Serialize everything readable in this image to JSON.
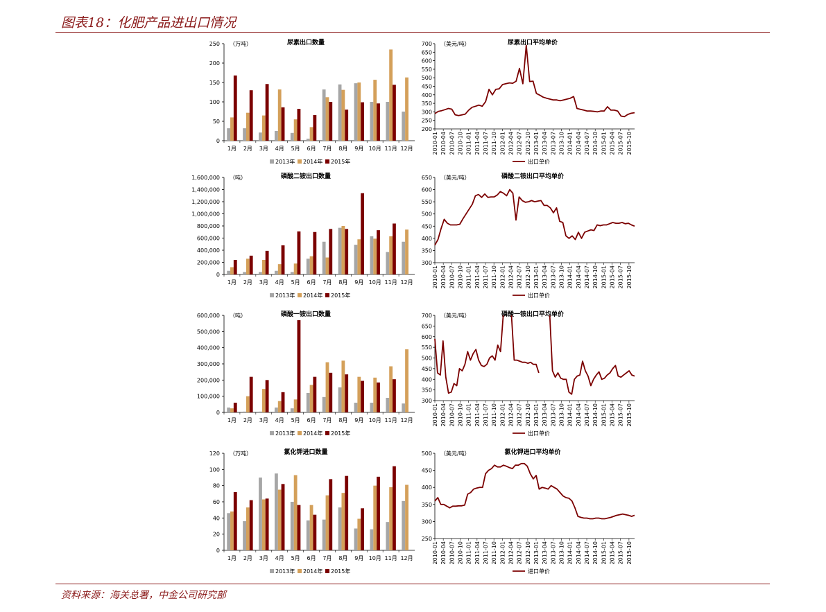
{
  "page": {
    "title": "图表18：化肥产品进出口情况",
    "source": "资料来源：海关总署，中金公司研究部"
  },
  "colors": {
    "y2013": "#a6a6a6",
    "y2014": "#d4a05a",
    "y2015": "#7b0000",
    "line": "#7b0000",
    "rule": "#8b1a1a"
  },
  "chart_data": [
    {
      "type": "bar",
      "title": "尿素出口数量",
      "unit_label": "（万吨）",
      "categories": [
        "1月",
        "2月",
        "3月",
        "4月",
        "5月",
        "6月",
        "7月",
        "8月",
        "9月",
        "10月",
        "11月",
        "12月"
      ],
      "series": [
        {
          "name": "2013年",
          "values": [
            32,
            32,
            21,
            25,
            20,
            5,
            132,
            145,
            148,
            100,
            100,
            75
          ]
        },
        {
          "name": "2014年",
          "values": [
            60,
            72,
            65,
            132,
            55,
            35,
            112,
            131,
            150,
            157,
            235,
            163
          ]
        },
        {
          "name": "2015年",
          "values": [
            168,
            130,
            146,
            86,
            82,
            66,
            100,
            80,
            99,
            96,
            144,
            null
          ]
        }
      ],
      "ylim": [
        0,
        250
      ],
      "yticks": [
        "0",
        "50",
        "100",
        "150",
        "200",
        "250"
      ],
      "legend": "bottom"
    },
    {
      "type": "line",
      "title": "尿素出口平均单价",
      "unit_label": "（美元/吨）",
      "x_start": "2010-01",
      "x_end": "2015-12",
      "xticks": [
        "2010-01",
        "2010-04",
        "2010-07",
        "2010-10",
        "2011-01",
        "2011-04",
        "2011-07",
        "2011-10",
        "2012-01",
        "2012-04",
        "2012-07",
        "2012-10",
        "2013-01",
        "2013-04",
        "2013-07",
        "2013-10",
        "2014-01",
        "2014-04",
        "2014-07",
        "2014-10",
        "2015-01",
        "2015-04",
        "2015-07",
        "2015-10"
      ],
      "series": [
        {
          "name": "出口单价",
          "values": [
            290,
            303,
            307,
            313,
            320,
            316,
            283,
            278,
            282,
            287,
            310,
            327,
            333,
            340,
            333,
            360,
            432,
            400,
            432,
            435,
            460,
            465,
            470,
            468,
            480,
            555,
            465,
            690,
            478,
            480,
            408,
            398,
            386,
            380,
            375,
            370,
            370,
            365,
            370,
            375,
            380,
            390,
            320,
            315,
            310,
            305,
            305,
            303,
            300,
            305,
            305,
            330,
            310,
            310,
            305,
            275,
            272,
            285,
            292,
            295
          ]
        }
      ],
      "ylim": [
        200,
        700
      ],
      "yticks": [
        "200",
        "250",
        "300",
        "350",
        "400",
        "450",
        "500",
        "550",
        "600",
        "650",
        "700"
      ],
      "legend": "bottom"
    },
    {
      "type": "bar",
      "title": "磷酸二铵出口数量",
      "unit_label": "（吨）",
      "categories": [
        "1月",
        "2月",
        "3月",
        "4月",
        "5月",
        "6月",
        "7月",
        "8月",
        "9月",
        "10月",
        "11月",
        "12月"
      ],
      "series": [
        {
          "name": "2013年",
          "values": [
            60000,
            40000,
            40000,
            60000,
            40000,
            260000,
            540000,
            770000,
            490000,
            630000,
            370000,
            540000
          ]
        },
        {
          "name": "2014年",
          "values": [
            120000,
            260000,
            240000,
            170000,
            180000,
            300000,
            280000,
            800000,
            580000,
            590000,
            630000,
            740000
          ]
        },
        {
          "name": "2015年",
          "values": [
            240000,
            310000,
            390000,
            480000,
            710000,
            700000,
            750000,
            750000,
            1340000,
            730000,
            840000,
            null
          ]
        }
      ],
      "ylim": [
        0,
        1600000
      ],
      "yticks": [
        "0",
        "200,000",
        "400,000",
        "600,000",
        "800,000",
        "1,000,000",
        "1,200,000",
        "1,400,000",
        "1,600,000"
      ],
      "legend": "bottom"
    },
    {
      "type": "line",
      "title": "磷酸二铵出口平均单价",
      "unit_label": "（美元/吨）",
      "x_start": "2010-01",
      "x_end": "2015-12",
      "xticks": [
        "2010-01",
        "2010-04",
        "2010-07",
        "2010-10",
        "2011-01",
        "2011-04",
        "2011-07",
        "2011-10",
        "2012-01",
        "2012-04",
        "2012-07",
        "2012-10",
        "2013-01",
        "2013-04",
        "2013-07",
        "2013-10",
        "2014-01",
        "2014-04",
        "2014-07",
        "2014-10",
        "2015-01",
        "2015-04",
        "2015-07",
        "2015-10"
      ],
      "series": [
        {
          "name": "出口单价",
          "values": [
            372,
            395,
            440,
            478,
            462,
            455,
            455,
            455,
            458,
            480,
            500,
            520,
            540,
            575,
            580,
            568,
            582,
            568,
            570,
            570,
            578,
            592,
            585,
            575,
            600,
            585,
            475,
            570,
            555,
            548,
            550,
            555,
            550,
            553,
            555,
            535,
            535,
            525,
            505,
            525,
            470,
            465,
            410,
            400,
            410,
            395,
            425,
            400,
            425,
            430,
            435,
            432,
            455,
            452,
            455,
            455,
            460,
            465,
            462,
            462,
            465,
            460,
            462,
            455,
            450
          ]
        }
      ],
      "ylim": [
        300,
        650
      ],
      "yticks": [
        "300",
        "350",
        "400",
        "450",
        "500",
        "550",
        "600",
        "650"
      ],
      "legend": "bottom"
    },
    {
      "type": "bar",
      "title": "磷酸一铵出口数量",
      "unit_label": "（吨）",
      "categories": [
        "1月",
        "2月",
        "3月",
        "4月",
        "5月",
        "6月",
        "7月",
        "8月",
        "9月",
        "10月",
        "11月",
        "12月"
      ],
      "series": [
        {
          "name": "2013年",
          "values": [
            30000,
            5000,
            5000,
            30000,
            25000,
            120000,
            95000,
            155000,
            60000,
            60000,
            90000,
            55000
          ]
        },
        {
          "name": "2014年",
          "values": [
            25000,
            100000,
            145000,
            70000,
            80000,
            170000,
            310000,
            320000,
            220000,
            215000,
            285000,
            390000
          ]
        },
        {
          "name": "2015年",
          "values": [
            60000,
            220000,
            200000,
            125000,
            570000,
            220000,
            245000,
            235000,
            195000,
            185000,
            205000,
            null
          ]
        }
      ],
      "ylim": [
        0,
        600000
      ],
      "yticks": [
        "0",
        "100,000",
        "200,000",
        "300,000",
        "400,000",
        "500,000",
        "600,000"
      ],
      "legend": "bottom"
    },
    {
      "type": "line",
      "title": "磷酸一铵出口平均单价",
      "unit_label": "（美元/吨）",
      "x_start": "2010-01",
      "x_end": "2015-12",
      "xticks": [
        "2010-01",
        "2010-04",
        "2010-07",
        "2010-10",
        "2011-01",
        "2011-04",
        "2011-07",
        "2011-10",
        "2012-01",
        "2012-04",
        "2012-07",
        "2012-10",
        "2013-01",
        "2013-04",
        "2013-07",
        "2013-10",
        "2014-01",
        "2014-04",
        "2014-07",
        "2014-10",
        "2015-01",
        "2015-04",
        "2015-07",
        "2015-10"
      ],
      "series": [
        {
          "name": "出口单价",
          "values": [
            590,
            430,
            420,
            580,
            410,
            335,
            340,
            380,
            370,
            450,
            440,
            470,
            530,
            490,
            520,
            540,
            490,
            465,
            460,
            470,
            500,
            510,
            490,
            560,
            530,
            700,
            null,
            null,
            700,
            490,
            490,
            485,
            480,
            480,
            475,
            480,
            470,
            470,
            430,
            null,
            null,
            null,
            700,
            440,
            410,
            430,
            405,
            400,
            400,
            340,
            330,
            400,
            415,
            420,
            485,
            440,
            415,
            370,
            400,
            420,
            435,
            400,
            405,
            420,
            430,
            450,
            465,
            415,
            410,
            420,
            430,
            440,
            420,
            415
          ]
        }
      ],
      "ylim": [
        300,
        700
      ],
      "yticks": [
        "300",
        "350",
        "400",
        "450",
        "500",
        "550",
        "600",
        "650",
        "700"
      ],
      "legend": "bottom"
    },
    {
      "type": "bar",
      "title": "氯化钾进口数量",
      "unit_label": "（万吨）",
      "categories": [
        "1月",
        "2月",
        "3月",
        "4月",
        "5月",
        "6月",
        "7月",
        "8月",
        "9月",
        "10月",
        "11月",
        "12月"
      ],
      "series": [
        {
          "name": "2013年",
          "values": [
            46,
            36,
            90,
            95,
            60,
            37,
            38,
            53,
            27,
            26,
            35,
            61
          ]
        },
        {
          "name": "2014年",
          "values": [
            48,
            53,
            63,
            75,
            93,
            56,
            68,
            71,
            39,
            80,
            78,
            81
          ]
        },
        {
          "name": "2015年",
          "values": [
            72,
            62,
            64,
            82,
            56,
            44,
            88,
            92,
            52,
            91,
            104,
            null
          ]
        }
      ],
      "ylim": [
        0,
        120
      ],
      "yticks": [
        "0",
        "20",
        "40",
        "60",
        "80",
        "100",
        "120"
      ],
      "legend": "bottom"
    },
    {
      "type": "line",
      "title": "氯化钾进口平均单价",
      "unit_label": "（美元/吨）",
      "x_start": "2010-01",
      "x_end": "2015-12",
      "xticks": [
        "2010-01",
        "2010-04",
        "2010-07",
        "2010-10",
        "2011-01",
        "2011-04",
        "2011-07",
        "2011-10",
        "2012-01",
        "2012-04",
        "2012-07",
        "2012-10",
        "2013-01",
        "2013-04",
        "2013-07",
        "2013-10",
        "2014-01",
        "2014-04",
        "2014-07",
        "2014-10",
        "2015-01",
        "2015-04",
        "2015-07",
        "2015-10"
      ],
      "series": [
        {
          "name": "进口单价",
          "values": [
            360,
            370,
            350,
            350,
            345,
            340,
            345,
            345,
            346,
            346,
            348,
            380,
            385,
            395,
            398,
            400,
            400,
            440,
            450,
            455,
            465,
            460,
            460,
            465,
            462,
            458,
            455,
            465,
            465,
            470,
            470,
            462,
            440,
            425,
            435,
            395,
            400,
            398,
            395,
            405,
            400,
            395,
            385,
            375,
            370,
            368,
            360,
            340,
            315,
            312,
            310,
            310,
            308,
            308,
            310,
            310,
            308,
            308,
            310,
            312,
            315,
            318,
            320,
            322,
            320,
            318,
            315,
            318
          ]
        }
      ],
      "ylim": [
        250,
        500
      ],
      "yticks": [
        "250",
        "300",
        "350",
        "400",
        "450",
        "500"
      ],
      "legend": "bottom"
    }
  ]
}
